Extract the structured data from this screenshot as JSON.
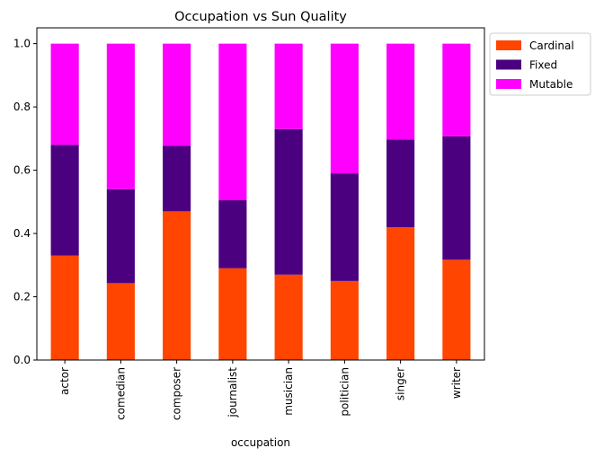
{
  "chart_data": {
    "type": "bar",
    "stacked": true,
    "title": "Occupation vs Sun Quality",
    "xlabel": "occupation",
    "ylabel": "",
    "ylim": [
      0,
      1.05
    ],
    "yticks": [
      "0.0",
      "0.2",
      "0.4",
      "0.6",
      "0.8",
      "1.0"
    ],
    "categories": [
      "actor",
      "comedian",
      "composer",
      "journalist",
      "musician",
      "politician",
      "singer",
      "writer"
    ],
    "series": [
      {
        "name": "Cardinal",
        "color": "#ff4500",
        "values": [
          0.33,
          0.243,
          0.47,
          0.29,
          0.27,
          0.25,
          0.42,
          0.317
        ]
      },
      {
        "name": "Fixed",
        "color": "#4b0080",
        "values": [
          0.35,
          0.297,
          0.207,
          0.215,
          0.46,
          0.34,
          0.277,
          0.39
        ]
      },
      {
        "name": "Mutable",
        "color": "#ff00ff",
        "values": [
          0.32,
          0.46,
          0.323,
          0.495,
          0.27,
          0.41,
          0.303,
          0.293
        ]
      }
    ],
    "grid": false,
    "legend_position": "upper-right-outside"
  }
}
